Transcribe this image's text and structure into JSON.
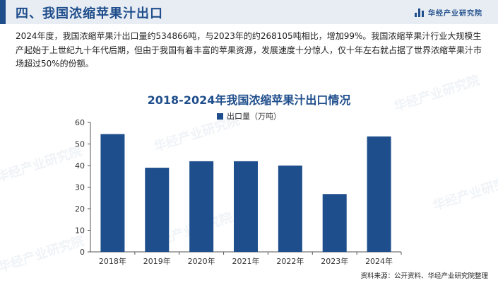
{
  "header": {
    "title": "四、我国浓缩苹果汁出口",
    "brand": "华经产业研究院"
  },
  "paragraph": "2024年度，我国浓缩苹果汁出口量约534866吨，与2023年的约268105吨相比，增加99%。我国浓缩苹果汁行业大规模生产起始于上世纪九十年代后期，但由于我国有着丰富的苹果资源，发展速度十分惊人，仅十年左右就占据了世界浓缩苹果汁市场超过50%的份额。",
  "watermark": "华经产业研究院",
  "source": "资料来源：公开资料、华经产业研究院整理",
  "colors": {
    "accent": "#1f4e8c",
    "header_bg": "#e8edf3"
  },
  "chart_data": {
    "type": "bar",
    "title": "2018-2024年我国浓缩苹果汁出口情况",
    "categories": [
      "2018年",
      "2019年",
      "2020年",
      "2021年",
      "2022年",
      "2023年",
      "2024年"
    ],
    "series": [
      {
        "name": "出口量（万吨）",
        "values": [
          54.6,
          39,
          42,
          42,
          40,
          26.8,
          53.5
        ],
        "color": "#1f4e8c"
      }
    ],
    "ylim": [
      0,
      60
    ],
    "yticks": [
      0,
      10,
      20,
      30,
      40,
      50,
      60
    ],
    "xlabel": "",
    "ylabel": "",
    "grid": false,
    "legend_position": "top"
  }
}
